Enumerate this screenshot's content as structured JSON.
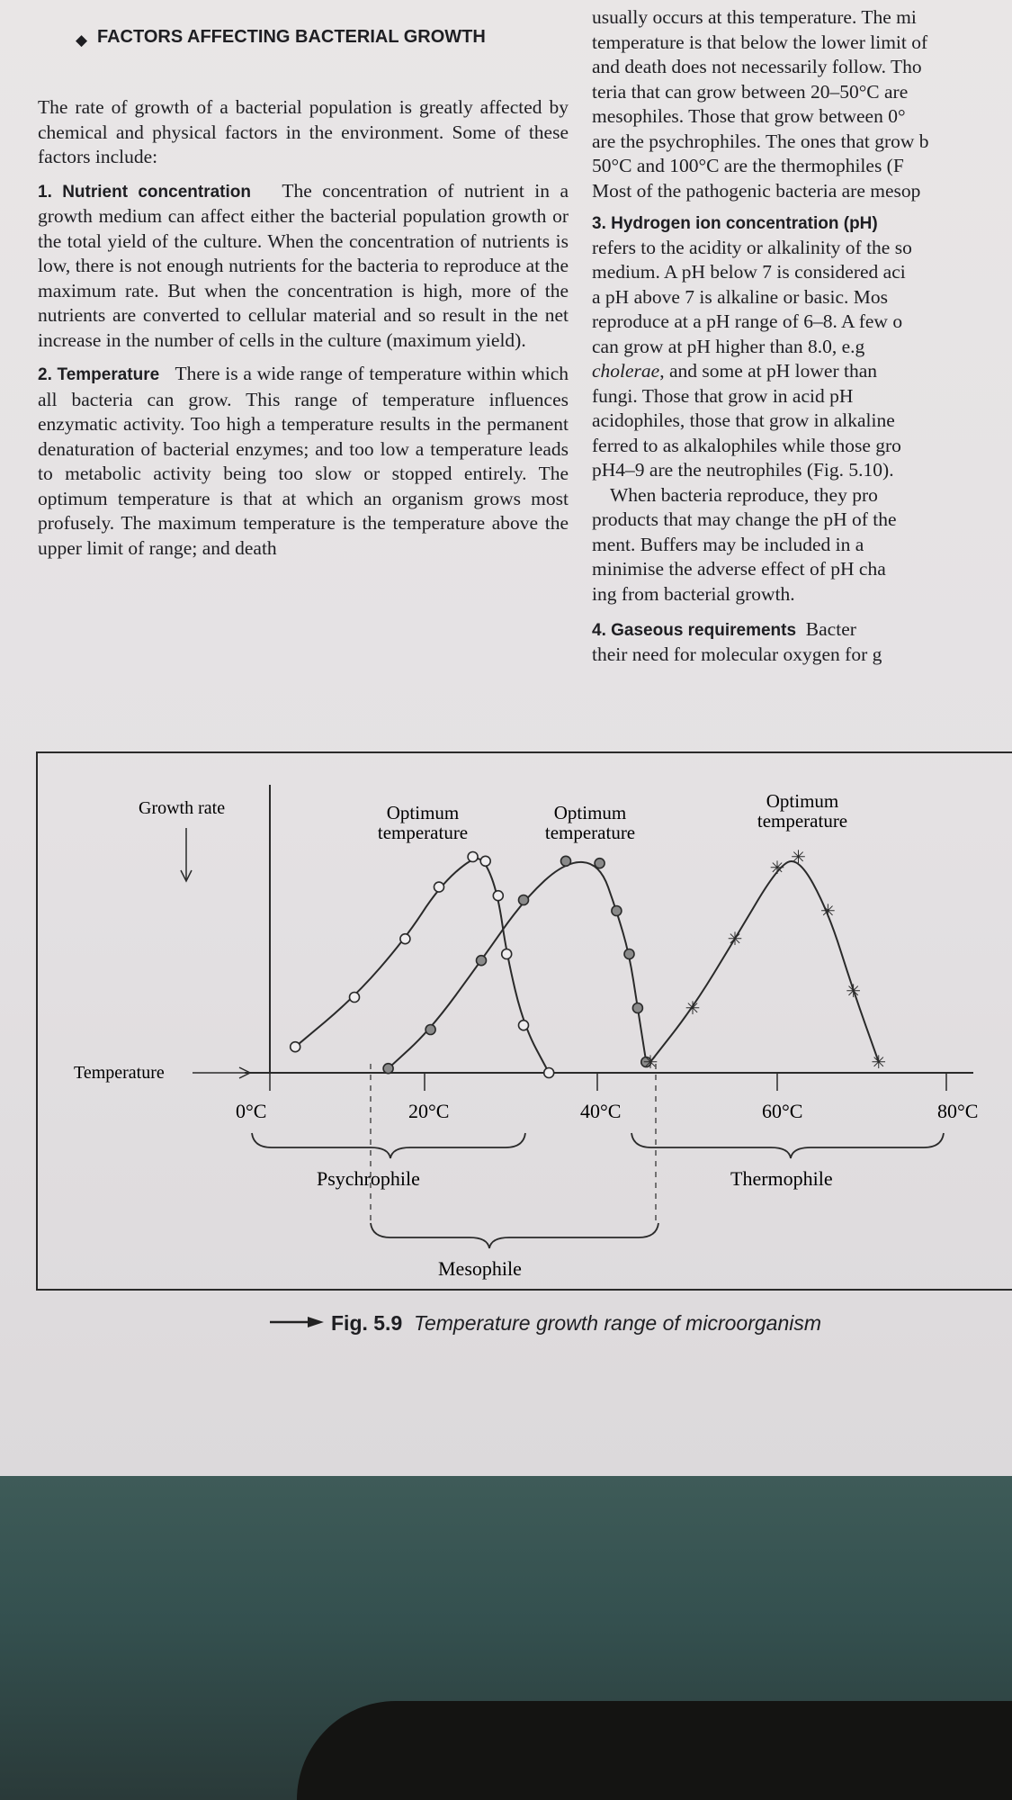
{
  "heading": "FACTORS AFFECTING BACTERIAL GROWTH",
  "intro": "The rate of growth of a bacterial population is greatly affected by chemical and physical factors in the environment. Some of these factors include:",
  "sections": {
    "nutrient": {
      "title": "1. Nutrient concentration",
      "body": "The concentration of nutrient in a growth medium can affect either the bacterial population growth or the total yield of the culture. When the concentration of nutrients is low, there is not enough nutrients for the bacteria to reproduce at the maximum rate. But when the concentration is high, more of the nutrients are converted to cellular material and so result in the net increase in the number of cells in the culture (maximum yield)."
    },
    "temperature": {
      "title": "2. Temperature",
      "body": "There is a wide range of temperature within which all bacteria can grow. This range of temperature influences enzymatic activity. Too high a temperature results in the permanent denaturation of bacterial enzymes; and too low a temperature leads to metabolic activity being too slow or stopped entirely. The optimum temperature is that at which an organism grows most profusely. The maximum temperature is the temperature above the upper limit of range; and death"
    }
  },
  "right_column": {
    "lines_a": [
      "usually occurs at this temperature. The mi",
      "temperature is that below the lower limit of",
      "and death does not necessarily follow. Tho",
      "teria that can grow between 20–50°C are",
      "mesophiles. Those that grow between 0°",
      "are the psychrophiles. The ones that grow b",
      "50°C and 100°C are the thermophiles (F",
      "Most of the pathogenic bacteria are mesop"
    ],
    "ph_title": "3. Hydrogen ion concentration (pH)",
    "lines_b": [
      "refers to the acidity or alkalinity of the so",
      "medium. A pH below 7 is considered aci",
      "a pH above 7 is alkaline or basic. Mos",
      "reproduce at a pH range of 6–8. A few o",
      "can grow at pH higher than 8.0, e.g"
    ],
    "cholerae": "cholerae",
    "lines_c_first_rest": ", and some at pH lower than",
    "lines_c": [
      "fungi. Those that grow in acid pH",
      "acidophiles, those that grow in alkaline",
      "ferred to as alkalophiles while those gro",
      "pH4–9 are the neutrophiles (Fig. 5.10).",
      "When bacteria reproduce, they pro",
      "products that may change the pH of the",
      "ment. Buffers may be included in a",
      "minimise the adverse effect of pH cha",
      "ing from bacterial growth."
    ],
    "gas_title": "4. Gaseous requirements",
    "gas_rest": "Bacter",
    "gas_line2": "their need for molecular oxygen for g"
  },
  "figure": {
    "y_axis_label": "Growth rate",
    "x_axis_label": "Temperature",
    "ticks": [
      "0°C",
      "20°C",
      "40°C",
      "60°C",
      "80°C"
    ],
    "optimum_label_line1": "Optimum",
    "optimum_label_line2": "temperature",
    "group_labels": {
      "psychrophile": "Psychrophile",
      "thermophile": "Thermophile",
      "mesophile": "Mesophile"
    }
  },
  "chart_data": {
    "type": "line",
    "xlabel": "Temperature",
    "ylabel": "Growth rate",
    "x_unit": "°C",
    "xlim": [
      0,
      80
    ],
    "series": [
      {
        "name": "Psychrophile",
        "marker": "open-circle",
        "x": [
          3,
          10,
          16,
          20,
          24,
          25.5,
          27,
          28,
          30,
          33
        ],
        "y": [
          0.12,
          0.35,
          0.62,
          0.86,
          1.0,
          0.98,
          0.82,
          0.55,
          0.22,
          0.0
        ]
      },
      {
        "name": "Mesophile",
        "marker": "filled-circle",
        "x": [
          14,
          19,
          25,
          30,
          35,
          39,
          41,
          42.5,
          43.5,
          44.5
        ],
        "y": [
          0.02,
          0.2,
          0.52,
          0.8,
          0.98,
          0.97,
          0.75,
          0.55,
          0.3,
          0.05
        ]
      },
      {
        "name": "Thermophile",
        "marker": "star",
        "x": [
          45,
          50,
          55,
          60,
          62.5,
          66,
          69,
          72
        ],
        "y": [
          0.05,
          0.3,
          0.62,
          0.95,
          1.0,
          0.75,
          0.38,
          0.05
        ]
      }
    ],
    "annotations": [
      "Optimum temperature",
      "Optimum temperature",
      "Optimum temperature"
    ]
  },
  "caption": {
    "label": "Fig. 5.9",
    "text": "Temperature growth range of microorganism"
  }
}
